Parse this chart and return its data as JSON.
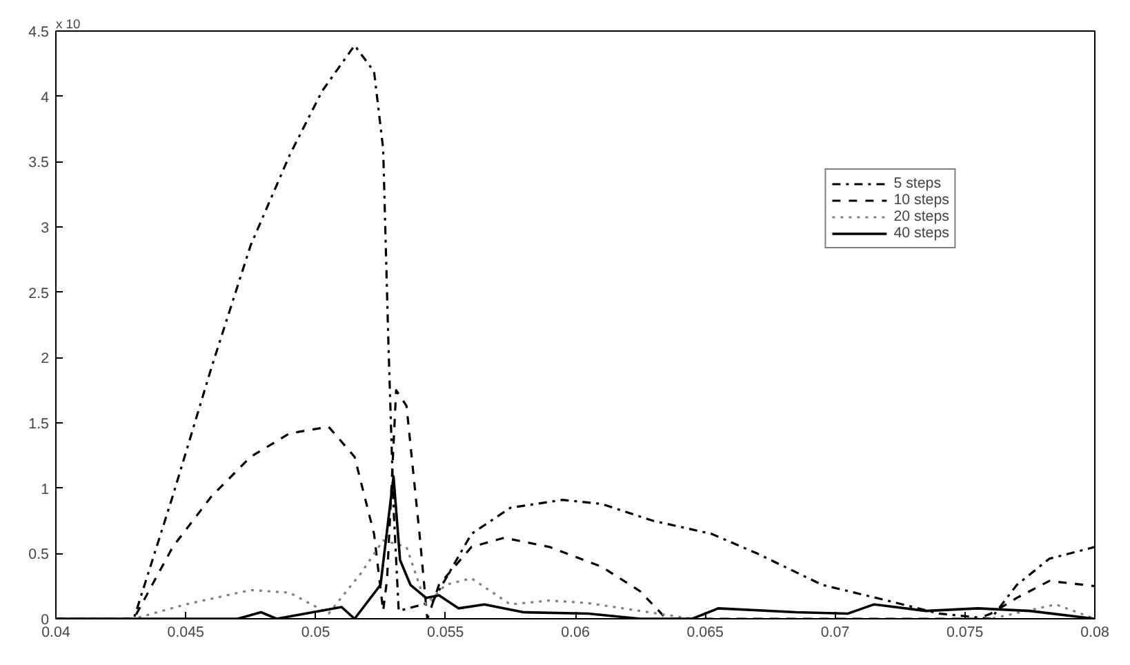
{
  "chart_data": {
    "type": "line",
    "xlim": [
      0.04,
      0.08
    ],
    "xticks": [
      0.04,
      0.045,
      0.05,
      0.055,
      0.06,
      0.065,
      0.07,
      0.075,
      0.08
    ],
    "ylim": [
      0,
      4.5
    ],
    "yticks": [
      0,
      0.5,
      1,
      1.5,
      2,
      2.5,
      3,
      3.5,
      4,
      4.5
    ],
    "grid": false,
    "legend": "top right",
    "annotations": [
      "x 10"
    ],
    "series": [
      {
        "name": "5 steps",
        "color": "#000000",
        "line_style": "dashdot",
        "x": [
          0.04,
          0.043,
          0.0445,
          0.046,
          0.0475,
          0.049,
          0.05025,
          0.0515,
          0.05225,
          0.0526,
          0.0528,
          0.053,
          0.0532,
          0.0545,
          0.056,
          0.0575,
          0.0595,
          0.061,
          0.063,
          0.06525,
          0.067,
          0.0695,
          0.072,
          0.074,
          0.076,
          0.077,
          0.07825,
          0.08
        ],
        "values": [
          0,
          0,
          0.94,
          1.93,
          2.86,
          3.55,
          4.04,
          4.39,
          4.19,
          3.6,
          2.13,
          0.85,
          0.06,
          0.13,
          0.65,
          0.85,
          0.91,
          0.88,
          0.75,
          0.65,
          0.5,
          0.26,
          0.14,
          0.04,
          0,
          0.26,
          0.46,
          0.55
        ]
      },
      {
        "name": "10 steps",
        "color": "#000000",
        "line_style": "dashed",
        "x": [
          0.04,
          0.043,
          0.0445,
          0.046,
          0.0475,
          0.049,
          0.0505,
          0.0515,
          0.05225,
          0.0526,
          0.05275,
          0.0531,
          0.0535,
          0.054,
          0.0543,
          0.05475,
          0.056,
          0.05725,
          0.059,
          0.061,
          0.0625,
          0.0635,
          0.0755,
          0.076,
          0.077,
          0.07825,
          0.08
        ],
        "values": [
          0,
          0,
          0.55,
          0.94,
          1.24,
          1.42,
          1.47,
          1.24,
          0.65,
          0.06,
          0.3,
          1.75,
          1.63,
          0.65,
          0,
          0.26,
          0.55,
          0.62,
          0.55,
          0.4,
          0.21,
          0,
          0,
          0.04,
          0.16,
          0.29,
          0.25
        ]
      },
      {
        "name": "20 steps",
        "color": "#808080",
        "line_style": "dotted",
        "x": [
          0.04,
          0.043,
          0.045,
          0.0475,
          0.049,
          0.0505,
          0.05175,
          0.0526,
          0.0535,
          0.05425,
          0.055,
          0.056,
          0.0575,
          0.059,
          0.0605,
          0.0625,
          0.0645,
          0.076,
          0.0785,
          0.08
        ],
        "values": [
          0,
          0,
          0.11,
          0.22,
          0.2,
          0.04,
          0.35,
          0.6,
          0.55,
          0.11,
          0.26,
          0.31,
          0.11,
          0.14,
          0.12,
          0.06,
          0,
          0,
          0.11,
          0
        ]
      },
      {
        "name": "40 steps",
        "color": "#000000",
        "line_style": "solid",
        "x": [
          0.04,
          0.047,
          0.0479,
          0.0485,
          0.051,
          0.0515,
          0.0525,
          0.053,
          0.05325,
          0.05365,
          0.05425,
          0.05475,
          0.0555,
          0.0565,
          0.058,
          0.0605,
          0.0625,
          0.0645,
          0.0655,
          0.0685,
          0.0705,
          0.0715,
          0.0735,
          0.0755,
          0.0775,
          0.08
        ],
        "values": [
          0,
          0,
          0.05,
          0,
          0.09,
          0,
          0.26,
          1.09,
          0.45,
          0.26,
          0.16,
          0.18,
          0.08,
          0.11,
          0.05,
          0.04,
          0,
          0,
          0.08,
          0.05,
          0.04,
          0.11,
          0.06,
          0.08,
          0.06,
          0
        ]
      }
    ]
  }
}
